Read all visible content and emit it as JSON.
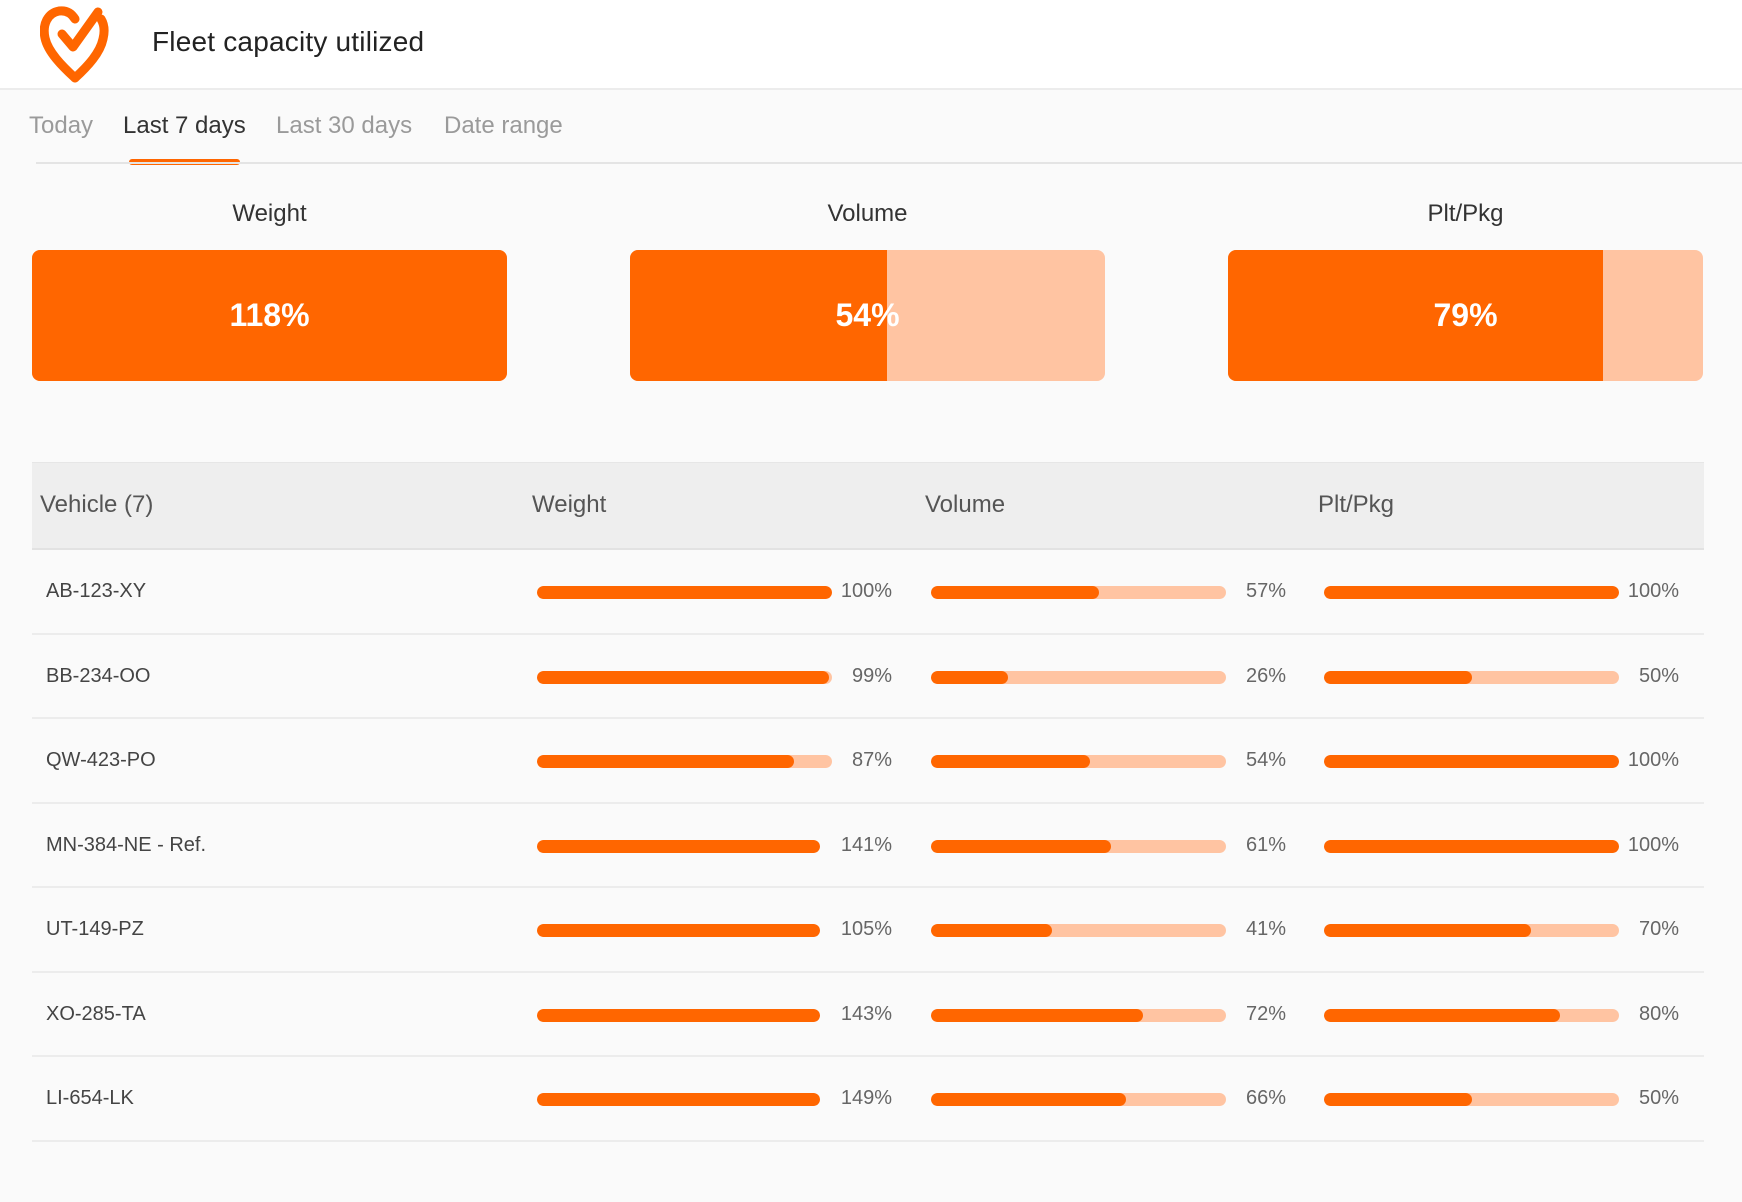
{
  "header": {
    "title": "Fleet capacity utilized",
    "logo_icon": "heart-check-logo",
    "accent_color": "#ff6600",
    "light_color": "#ffc4a2"
  },
  "tabs": [
    {
      "label": "Today",
      "active": false
    },
    {
      "label": "Last 7 days",
      "active": true
    },
    {
      "label": "Last 30 days",
      "active": false
    },
    {
      "label": "Date range",
      "active": false
    }
  ],
  "summary": [
    {
      "label": "Weight",
      "value": "118%",
      "percent": 118
    },
    {
      "label": "Volume",
      "value": "54%",
      "percent": 54
    },
    {
      "label": "Plt/Pkg",
      "value": "79%",
      "percent": 79
    }
  ],
  "table": {
    "headers": {
      "vehicle": "Vehicle (7)",
      "weight": "Weight",
      "volume": "Volume",
      "pltpkg": "Plt/Pkg"
    },
    "rows": [
      {
        "vehicle": "AB-123-XY",
        "weight": "100%",
        "weight_pct": 100,
        "volume": "57%",
        "volume_pct": 57,
        "pltpkg": "100%",
        "pltpkg_pct": 100
      },
      {
        "vehicle": "BB-234-OO",
        "weight": "99%",
        "weight_pct": 99,
        "volume": "26%",
        "volume_pct": 26,
        "pltpkg": "50%",
        "pltpkg_pct": 50
      },
      {
        "vehicle": "QW-423-PO",
        "weight": "87%",
        "weight_pct": 87,
        "volume": "54%",
        "volume_pct": 54,
        "pltpkg": "100%",
        "pltpkg_pct": 100
      },
      {
        "vehicle": "MN-384-NE - Ref.",
        "weight": "141%",
        "weight_pct": 141,
        "volume": "61%",
        "volume_pct": 61,
        "pltpkg": "100%",
        "pltpkg_pct": 100
      },
      {
        "vehicle": "UT-149-PZ",
        "weight": "105%",
        "weight_pct": 105,
        "volume": "41%",
        "volume_pct": 41,
        "pltpkg": "70%",
        "pltpkg_pct": 70
      },
      {
        "vehicle": "XO-285-TA",
        "weight": "143%",
        "weight_pct": 143,
        "volume": "72%",
        "volume_pct": 72,
        "pltpkg": "80%",
        "pltpkg_pct": 80
      },
      {
        "vehicle": "LI-654-LK",
        "weight": "149%",
        "weight_pct": 149,
        "volume": "66%",
        "volume_pct": 66,
        "pltpkg": "50%",
        "pltpkg_pct": 50
      }
    ]
  }
}
